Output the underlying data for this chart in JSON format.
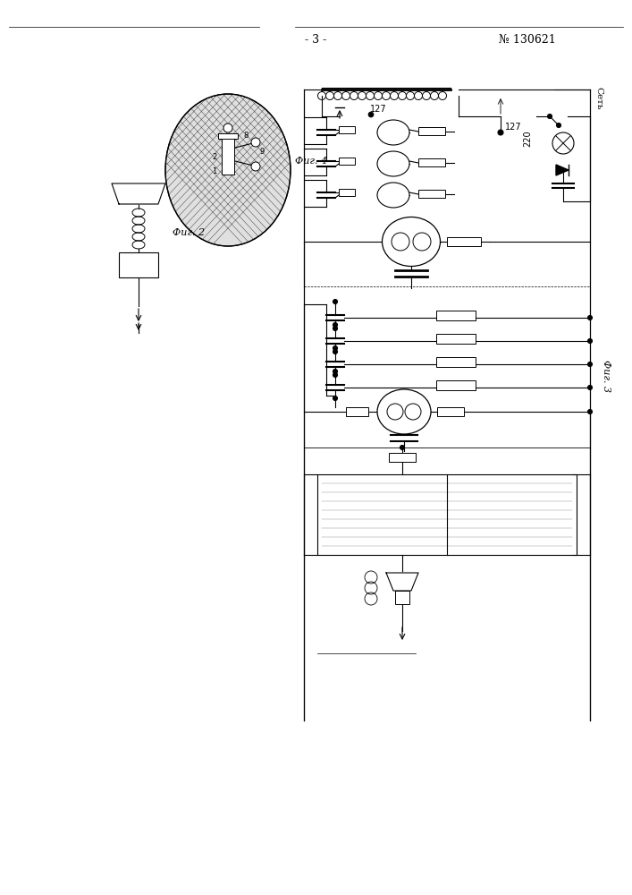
{
  "page_number": "- 3 -",
  "patent_number": "№ 130621",
  "background_color": "#ffffff",
  "line_color": "#000000",
  "fig2_label": "Фиг. 2",
  "fig4_label": "Фиг. 4",
  "fig3_label": "Фиг. 3",
  "text_127": "127",
  "text_220": "220",
  "text_set": "Сеть"
}
